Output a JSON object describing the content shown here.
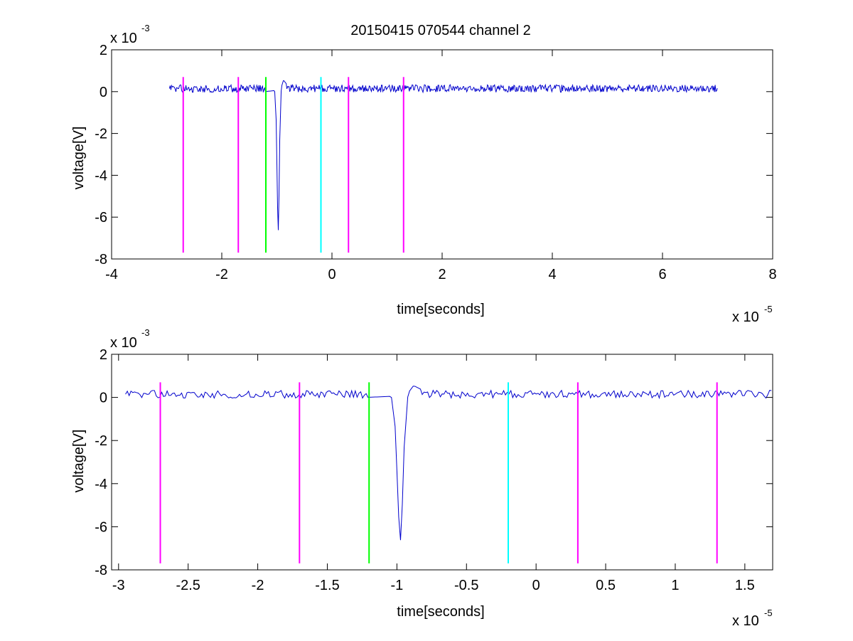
{
  "figure": {
    "title": "20150415 070544 channel 2"
  },
  "chart_data": [
    {
      "type": "line",
      "title": "20150415 070544 channel 2",
      "xlabel": "time[seconds]",
      "ylabel": "voltage[V]",
      "x_multiplier": "x 10",
      "x_exponent": "-5",
      "y_multiplier": "x 10",
      "y_exponent": "-3",
      "xlim": [
        -4,
        8
      ],
      "ylim": [
        -8,
        2
      ],
      "xticks": [
        -4,
        -2,
        0,
        2,
        4,
        6,
        8
      ],
      "yticks": [
        -8,
        -6,
        -4,
        -2,
        0,
        2
      ],
      "xtick_labels": [
        "-4",
        "-2",
        "0",
        "2",
        "4",
        "6",
        "8"
      ],
      "ytick_labels": [
        "-8",
        "-6",
        "-4",
        "-2",
        "0",
        "2"
      ],
      "grid": false,
      "series": [
        {
          "color": "#0000cc",
          "x_range": [
            -2.95,
            7.0
          ],
          "baseline": 0.15,
          "noise": 0.18,
          "events": [
            {
              "x": -1.22,
              "y": 0.0
            },
            {
              "x": -1.04,
              "y": 0.05
            },
            {
              "x": -1.01,
              "y": -1.5
            },
            {
              "x": -0.99,
              "y": -5.3
            },
            {
              "x": -0.97,
              "y": -6.95
            },
            {
              "x": -0.95,
              "y": -2.5
            },
            {
              "x": -0.92,
              "y": 0.2
            },
            {
              "x": -0.88,
              "y": 0.55
            },
            {
              "x": -0.82,
              "y": 0.35
            }
          ]
        }
      ],
      "vertical_lines": [
        {
          "x": -2.7,
          "color": "#ff00ff",
          "y_range": [
            -7.7,
            0.7
          ]
        },
        {
          "x": -1.7,
          "color": "#ff00ff",
          "y_range": [
            -7.7,
            0.7
          ]
        },
        {
          "x": -1.2,
          "color": "#00ff00",
          "y_range": [
            -7.7,
            0.7
          ]
        },
        {
          "x": -0.2,
          "color": "#00ffff",
          "y_range": [
            -7.7,
            0.7
          ]
        },
        {
          "x": 0.3,
          "color": "#ff00ff",
          "y_range": [
            -7.7,
            0.7
          ]
        },
        {
          "x": 1.3,
          "color": "#ff00ff",
          "y_range": [
            -7.7,
            0.7
          ]
        }
      ]
    },
    {
      "type": "line",
      "xlabel": "time[seconds]",
      "ylabel": "voltage[V]",
      "x_multiplier": "x 10",
      "x_exponent": "-5",
      "y_multiplier": "x 10",
      "y_exponent": "-3",
      "xlim": [
        -3.05,
        1.7
      ],
      "ylim": [
        -8,
        2
      ],
      "xticks": [
        -3,
        -2.5,
        -2,
        -1.5,
        -1,
        -0.5,
        0,
        0.5,
        1,
        1.5
      ],
      "yticks": [
        -8,
        -6,
        -4,
        -2,
        0,
        2
      ],
      "xtick_labels": [
        "-3",
        "-2.5",
        "-2",
        "-1.5",
        "-1",
        "-0.5",
        "0",
        "0.5",
        "1",
        "1.5"
      ],
      "ytick_labels": [
        "-8",
        "-6",
        "-4",
        "-2",
        "0",
        "2"
      ],
      "grid": false,
      "series": [
        {
          "color": "#0000cc",
          "x_range": [
            -2.95,
            1.7
          ],
          "baseline": 0.15,
          "noise": 0.18,
          "events": [
            {
              "x": -1.22,
              "y": 0.0
            },
            {
              "x": -1.04,
              "y": 0.05
            },
            {
              "x": -1.01,
              "y": -1.5
            },
            {
              "x": -0.99,
              "y": -5.3
            },
            {
              "x": -0.97,
              "y": -6.95
            },
            {
              "x": -0.95,
              "y": -2.5
            },
            {
              "x": -0.92,
              "y": 0.2
            },
            {
              "x": -0.88,
              "y": 0.55
            },
            {
              "x": -0.82,
              "y": 0.35
            }
          ]
        }
      ],
      "vertical_lines": [
        {
          "x": -2.7,
          "color": "#ff00ff",
          "y_range": [
            -7.7,
            0.7
          ]
        },
        {
          "x": -1.7,
          "color": "#ff00ff",
          "y_range": [
            -7.7,
            0.7
          ]
        },
        {
          "x": -1.2,
          "color": "#00ff00",
          "y_range": [
            -7.7,
            0.7
          ]
        },
        {
          "x": -0.2,
          "color": "#00ffff",
          "y_range": [
            -7.7,
            0.7
          ]
        },
        {
          "x": 0.3,
          "color": "#ff00ff",
          "y_range": [
            -7.7,
            0.7
          ]
        },
        {
          "x": 1.3,
          "color": "#ff00ff",
          "y_range": [
            -7.7,
            0.7
          ]
        }
      ]
    }
  ]
}
